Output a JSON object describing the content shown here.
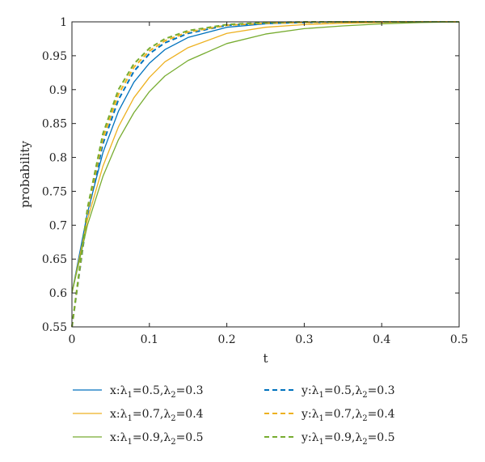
{
  "chart_data": {
    "type": "line",
    "xlabel": "t",
    "ylabel": "probability",
    "xlim": [
      0,
      0.5
    ],
    "ylim": [
      0.55,
      1.0
    ],
    "xticks": [
      "0",
      "0.1",
      "0.2",
      "0.3",
      "0.4",
      "0.5"
    ],
    "yticks": [
      "0.55",
      "0.6",
      "0.65",
      "0.7",
      "0.75",
      "0.8",
      "0.85",
      "0.9",
      "0.95",
      "1"
    ],
    "grid": false,
    "legend_position": "bottom",
    "x": [
      0,
      0.02,
      0.04,
      0.06,
      0.08,
      0.1,
      0.12,
      0.15,
      0.2,
      0.25,
      0.3,
      0.35,
      0.4,
      0.45,
      0.5
    ],
    "series": [
      {
        "name": "x:λ1=0.5,λ2=0.3",
        "legend": {
          "var": "x:λ",
          "s1": "1",
          "m1": "=0.5,λ",
          "s2": "2",
          "m2": "=0.3"
        },
        "color": "#0072BD",
        "dash": "solid",
        "values": [
          0.6,
          0.718,
          0.807,
          0.868,
          0.911,
          0.939,
          0.959,
          0.977,
          0.992,
          0.997,
          0.999,
          1.0,
          1.0,
          1.0,
          1.0
        ]
      },
      {
        "name": "y:λ1=0.5,λ2=0.3",
        "legend": {
          "var": "y:λ",
          "s1": "1",
          "m1": "=0.5,λ",
          "s2": "2",
          "m2": "=0.3"
        },
        "color": "#0072BD",
        "dash": "dashed",
        "values": [
          0.55,
          0.715,
          0.82,
          0.885,
          0.927,
          0.953,
          0.969,
          0.983,
          0.995,
          0.998,
          0.999,
          1.0,
          1.0,
          1.0,
          1.0
        ]
      },
      {
        "name": "x:λ1=0.7,λ2=0.4",
        "legend": {
          "var": "x:λ",
          "s1": "1",
          "m1": "=0.7,λ",
          "s2": "2",
          "m2": "=0.4"
        },
        "color": "#EDB120",
        "dash": "solid",
        "values": [
          0.6,
          0.708,
          0.787,
          0.845,
          0.888,
          0.918,
          0.941,
          0.962,
          0.983,
          0.992,
          0.996,
          0.998,
          0.999,
          1.0,
          1.0
        ]
      },
      {
        "name": "y:λ1=0.7,λ2=0.4",
        "legend": {
          "var": "y:λ",
          "s1": "1",
          "m1": "=0.7,λ",
          "s2": "2",
          "m2": "=0.4"
        },
        "color": "#EDB120",
        "dash": "dashed",
        "values": [
          0.55,
          0.72,
          0.828,
          0.893,
          0.933,
          0.957,
          0.972,
          0.985,
          0.995,
          0.998,
          0.999,
          1.0,
          1.0,
          1.0,
          1.0
        ]
      },
      {
        "name": "x:λ1=0.9,λ2=0.5",
        "legend": {
          "var": "x:λ",
          "s1": "1",
          "m1": "=0.9,λ",
          "s2": "2",
          "m2": "=0.5"
        },
        "color": "#77AC30",
        "dash": "solid",
        "values": [
          0.6,
          0.7,
          0.772,
          0.826,
          0.866,
          0.897,
          0.92,
          0.943,
          0.968,
          0.982,
          0.99,
          0.994,
          0.997,
          0.999,
          1.0
        ]
      },
      {
        "name": "y:λ1=0.9,λ2=0.5",
        "legend": {
          "var": "y:λ",
          "s1": "1",
          "m1": "=0.9,λ",
          "s2": "2",
          "m2": "=0.5"
        },
        "color": "#77AC30",
        "dash": "dashed",
        "values": [
          0.55,
          0.725,
          0.835,
          0.9,
          0.938,
          0.961,
          0.975,
          0.987,
          0.996,
          0.999,
          1.0,
          1.0,
          1.0,
          1.0,
          1.0
        ]
      }
    ]
  }
}
